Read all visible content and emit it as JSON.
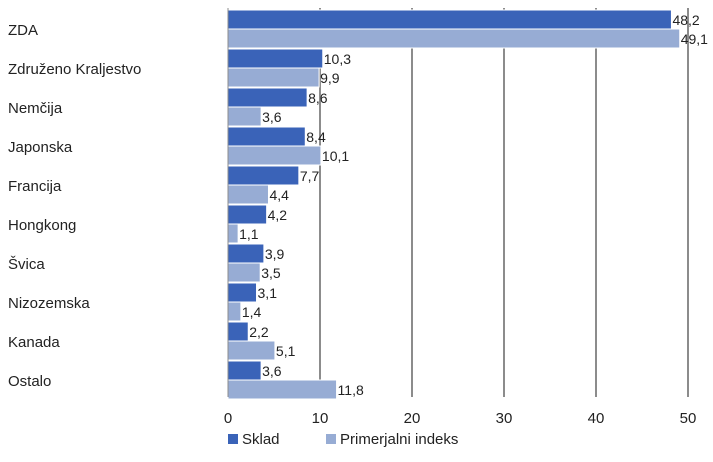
{
  "chart_data": {
    "type": "bar",
    "orientation": "horizontal",
    "categories": [
      "ZDA",
      "Združeno Kraljestvo",
      "Nemčija",
      "Japonska",
      "Francija",
      "Hongkong",
      "Švica",
      "Nizozemska",
      "Kanada",
      "Ostalo"
    ],
    "series": [
      {
        "name": "Sklad",
        "color": "#3a63b8",
        "values": [
          48.2,
          10.3,
          8.6,
          8.4,
          7.7,
          4.2,
          3.9,
          3.1,
          2.2,
          3.6
        ],
        "value_labels": [
          "48,2",
          "10,3",
          "8,6",
          "8,4",
          "7,7",
          "4,2",
          "3,9",
          "3,1",
          "2,2",
          "3,6"
        ]
      },
      {
        "name": "Primerjalni indeks",
        "color": "#97acd4",
        "values": [
          49.1,
          9.9,
          3.6,
          10.1,
          4.4,
          1.1,
          3.5,
          1.4,
          5.1,
          11.8
        ],
        "value_labels": [
          "49,1",
          "9,9",
          "3,6",
          "10,1",
          "4,4",
          "1,1",
          "3,5",
          "1,4",
          "5,1",
          "11,8"
        ]
      }
    ],
    "xlim": [
      0,
      50
    ],
    "x_ticks": [
      0,
      10,
      20,
      30,
      40,
      50
    ],
    "grid": true,
    "legend": "bottom-left"
  }
}
